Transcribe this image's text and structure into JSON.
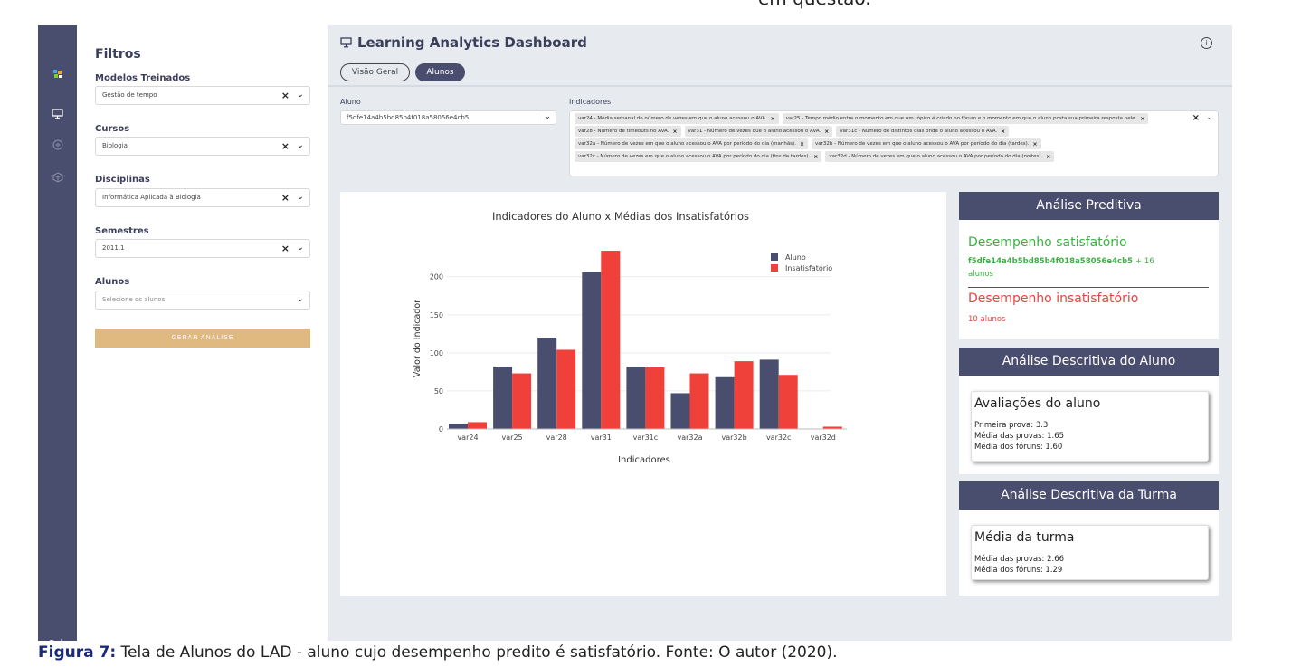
{
  "top_cut_text": "em questão.",
  "rail": {
    "exit_label": "Sair"
  },
  "filters": {
    "title": "Filtros",
    "groups": [
      {
        "label": "Modelos Treinados",
        "value": "Gestão de tempo"
      },
      {
        "label": "Cursos",
        "value": "Biologia"
      },
      {
        "label": "Disciplinas",
        "value": "Informática Aplicada à Biologia"
      },
      {
        "label": "Semestres",
        "value": "2011.1"
      }
    ],
    "alunos_label": "Alunos",
    "alunos_placeholder": "Selecione os alunos",
    "button_label": "GERAR ANÁLISE"
  },
  "header": {
    "title": "Learning Analytics Dashboard",
    "tabs": [
      "Visão Geral",
      "Alunos"
    ]
  },
  "aluno": {
    "label": "Aluno",
    "value": "f5dfe14a4b5bd85b4f018a58056e4cb5"
  },
  "indicadores": {
    "label": "Indicadores",
    "tags": [
      "var24 - Média semanal do número de vezes em que o aluno acessou o AVA.",
      "var25 - Tempo médio entre o momento em que um tópico é criado no fórum e o momento em que o aluno posta sua primeira resposta nele.",
      "var28 - Número de timeouts no AVA.",
      "var31 - Número de vezes que o aluno acessou o AVA.",
      "var31c - Número de distintos dias onde o aluno acessou o AVA.",
      "var32a - Número de vezes em que o aluno acessou o AVA por período do dia (manhãs).",
      "var32b - Número de vezes em que o aluno acessou o AVA por período do dia (tardes).",
      "var32c - Número de vezes em que o aluno acessou o AVA por período do dia (fins de tardes).",
      "var32d - Número de vezes em que o aluno acessou o AVA por período do dia (noites)."
    ]
  },
  "chart_data": {
    "type": "bar",
    "title": "Indicadores do Aluno x Médias dos Insatisfatórios",
    "xlabel": "Indicadores",
    "ylabel": "Valor do Indicador",
    "categories": [
      "var24",
      "var25",
      "var28",
      "var31",
      "var31c",
      "var32a",
      "var32b",
      "var32c",
      "var32d"
    ],
    "series": [
      {
        "name": "Aluno",
        "values": [
          7,
          82,
          120,
          206,
          82,
          47,
          68,
          91,
          0
        ],
        "color": "#4a4e6e"
      },
      {
        "name": "Insatisfatório",
        "values": [
          9,
          73,
          104,
          234,
          81,
          73,
          89,
          71,
          3
        ],
        "color": "#f0403a"
      }
    ],
    "yticks": [
      0,
      50,
      100,
      150,
      200
    ],
    "ylim": [
      0,
      240
    ],
    "legend": "top-right",
    "grid": true
  },
  "preditiva": {
    "title": "Análise Preditiva",
    "satisfatorio_title": "Desempenho satisfatório",
    "satisfatorio_id": "f5dfe14a4b5bd85b4f018a58056e4cb5",
    "satisfatorio_more": "+ 16",
    "satisfatorio_extra": "alunos",
    "insatisfatorio_title": "Desempenho insatisfatório",
    "insatisfatorio_count": "10 alunos",
    "color_sat": "#3cb043",
    "color_ins": "#e8433c"
  },
  "desc_aluno": {
    "title": "Análise Descritiva do Aluno",
    "box_title": "Avaliações do aluno",
    "lines": [
      "Primeira prova: 3.3",
      "Média das provas: 1.65",
      "Média dos fóruns: 1.60"
    ]
  },
  "desc_turma": {
    "title": "Análise Descritiva da Turma",
    "box_title": "Média da turma",
    "lines": [
      "Média das provas: 2.66",
      "Média dos fóruns: 1.29"
    ]
  },
  "caption": {
    "figure": "Figura 7:",
    "text": " Tela de Alunos do LAD - aluno cujo desempenho predito é satisfatório. Fonte: O autor (2020)."
  }
}
